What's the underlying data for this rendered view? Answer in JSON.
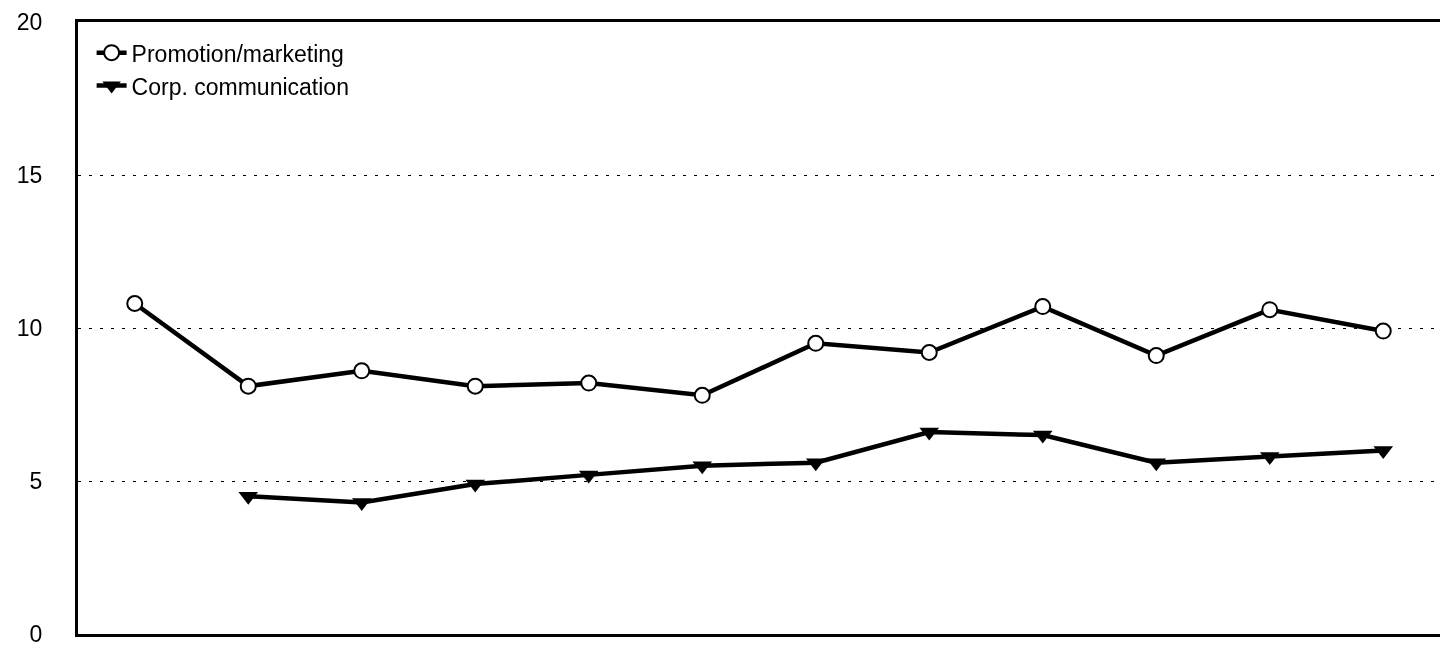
{
  "chart_data": {
    "type": "line",
    "categories": [
      null,
      null,
      null,
      null,
      null,
      null,
      null,
      null,
      null,
      null,
      null,
      null
    ],
    "series": [
      {
        "name": "Promotion/marketing",
        "color": "#000000",
        "marker": "circle",
        "values": [
          10.8,
          8.1,
          8.6,
          8.1,
          8.2,
          7.8,
          9.5,
          9.2,
          10.7,
          9.1,
          10.6,
          9.9
        ]
      },
      {
        "name": "Corp. communication",
        "color": "#000000",
        "marker": "triangle",
        "values": [
          null,
          4.5,
          4.3,
          4.9,
          5.2,
          5.5,
          5.6,
          6.6,
          6.5,
          5.6,
          5.8,
          6.0
        ]
      }
    ],
    "ylim": [
      0,
      20
    ],
    "yticks": [
      0,
      5,
      10,
      15,
      20
    ],
    "grid": "y",
    "legend": "top left",
    "tick_labels": "y",
    "line_style": "solid"
  }
}
